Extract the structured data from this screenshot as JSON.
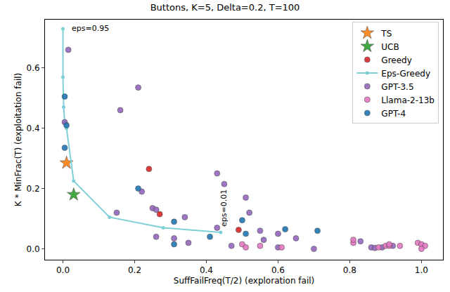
{
  "chart_data": {
    "type": "scatter",
    "title": "Buttons, K=5, Delta=0.2, T=100",
    "x_label": "SuffFailFreq(T/2) (exploration fail)",
    "y_label": "K * MinFrac(T) (exploitation fail)",
    "xlim": [
      -0.05,
      1.06
    ],
    "ylim": [
      -0.036,
      0.76
    ],
    "xticks": [
      {
        "value": 0,
        "label": "0.0"
      },
      {
        "value": 0.2,
        "label": "0.2"
      },
      {
        "value": 0.4,
        "label": "0.4"
      },
      {
        "value": 0.6,
        "label": "0.6"
      },
      {
        "value": 0.8,
        "label": "0.8"
      },
      {
        "value": 1.0,
        "label": "1.0"
      }
    ],
    "yticks": [
      {
        "value": 0,
        "label": "0.0"
      },
      {
        "value": 0.2,
        "label": "0.2"
      },
      {
        "value": 0.4,
        "label": "0.4"
      },
      {
        "value": 0.6,
        "label": "0.6"
      }
    ],
    "grid": false,
    "legend": "upper right",
    "series": [
      {
        "name": "TS",
        "color": "#ff7f0e",
        "marker": "star",
        "x": [
          0.01
        ],
        "values": [
          0.285
        ]
      },
      {
        "name": "UCB",
        "color": "#2ca02c",
        "marker": "star",
        "x": [
          0.03
        ],
        "values": [
          0.18
        ]
      },
      {
        "name": "Greedy",
        "color": "#d62728",
        "marker": "circle",
        "x": [
          0.24,
          0.27,
          0.49
        ],
        "values": [
          0.265,
          0.115,
          0.063
        ]
      },
      {
        "name": "Eps-Greedy",
        "color": "#7ecfd6",
        "marker": "circle",
        "type": "line",
        "x": [
          0.0,
          0.0,
          0.002,
          0.005,
          0.01,
          0.03,
          0.13,
          0.28,
          0.44
        ],
        "values": [
          0.73,
          0.57,
          0.47,
          0.42,
          0.4,
          0.225,
          0.105,
          0.07,
          0.055
        ]
      },
      {
        "name": "GPT-3.5",
        "color": "#9467bd",
        "marker": "circle",
        "x": [
          0.015,
          0.005,
          0.21,
          0.16,
          0.43,
          0.22,
          0.25,
          0.26,
          0.34,
          0.15,
          0.26,
          0.31,
          0.35,
          0.45,
          0.51,
          0.52,
          0.55,
          0.56,
          0.6,
          0.65,
          0.7,
          0.83,
          0.86,
          0.87,
          0.89,
          0.92,
          0.47,
          0.43,
          0.6
        ],
        "values": [
          0.66,
          0.42,
          0.535,
          0.46,
          0.25,
          0.19,
          0.135,
          0.13,
          0.105,
          0.12,
          0.04,
          0.035,
          0.02,
          0.215,
          0.17,
          0.12,
          0.06,
          0.03,
          0.05,
          0.035,
          0.0,
          0.025,
          0.005,
          0.003,
          0.005,
          0.01,
          0.01,
          0.07,
          0.005
        ]
      },
      {
        "name": "Llama-2-13b",
        "color": "#e377c2",
        "marker": "circle",
        "x": [
          0.5,
          0.51,
          0.61,
          0.81,
          0.81,
          0.88,
          0.9,
          0.91,
          0.91,
          0.94,
          0.99,
          1.0,
          1.01,
          1.0,
          0.55
        ],
        "values": [
          0.015,
          0.005,
          0.005,
          0.02,
          0.03,
          0.005,
          0.01,
          0.01,
          0.015,
          0.01,
          0.02,
          0.015,
          0.01,
          0.0,
          0.01
        ]
      },
      {
        "name": "GPT-4",
        "color": "#1f77b4",
        "marker": "circle",
        "x": [
          0.005,
          0.01,
          0.005,
          0.21,
          0.31,
          0.5,
          0.51,
          0.41,
          0.31,
          0.62,
          0.71
        ],
        "values": [
          0.505,
          0.41,
          0.335,
          0.2,
          0.09,
          0.095,
          0.05,
          0.04,
          0.015,
          0.065,
          0.06
        ]
      }
    ],
    "annotations": [
      {
        "text": "eps=0.95",
        "x": 0.012,
        "y": 0.73
      },
      {
        "text": "eps=0.01",
        "x": 0.445,
        "y": 0.135
      }
    ]
  }
}
